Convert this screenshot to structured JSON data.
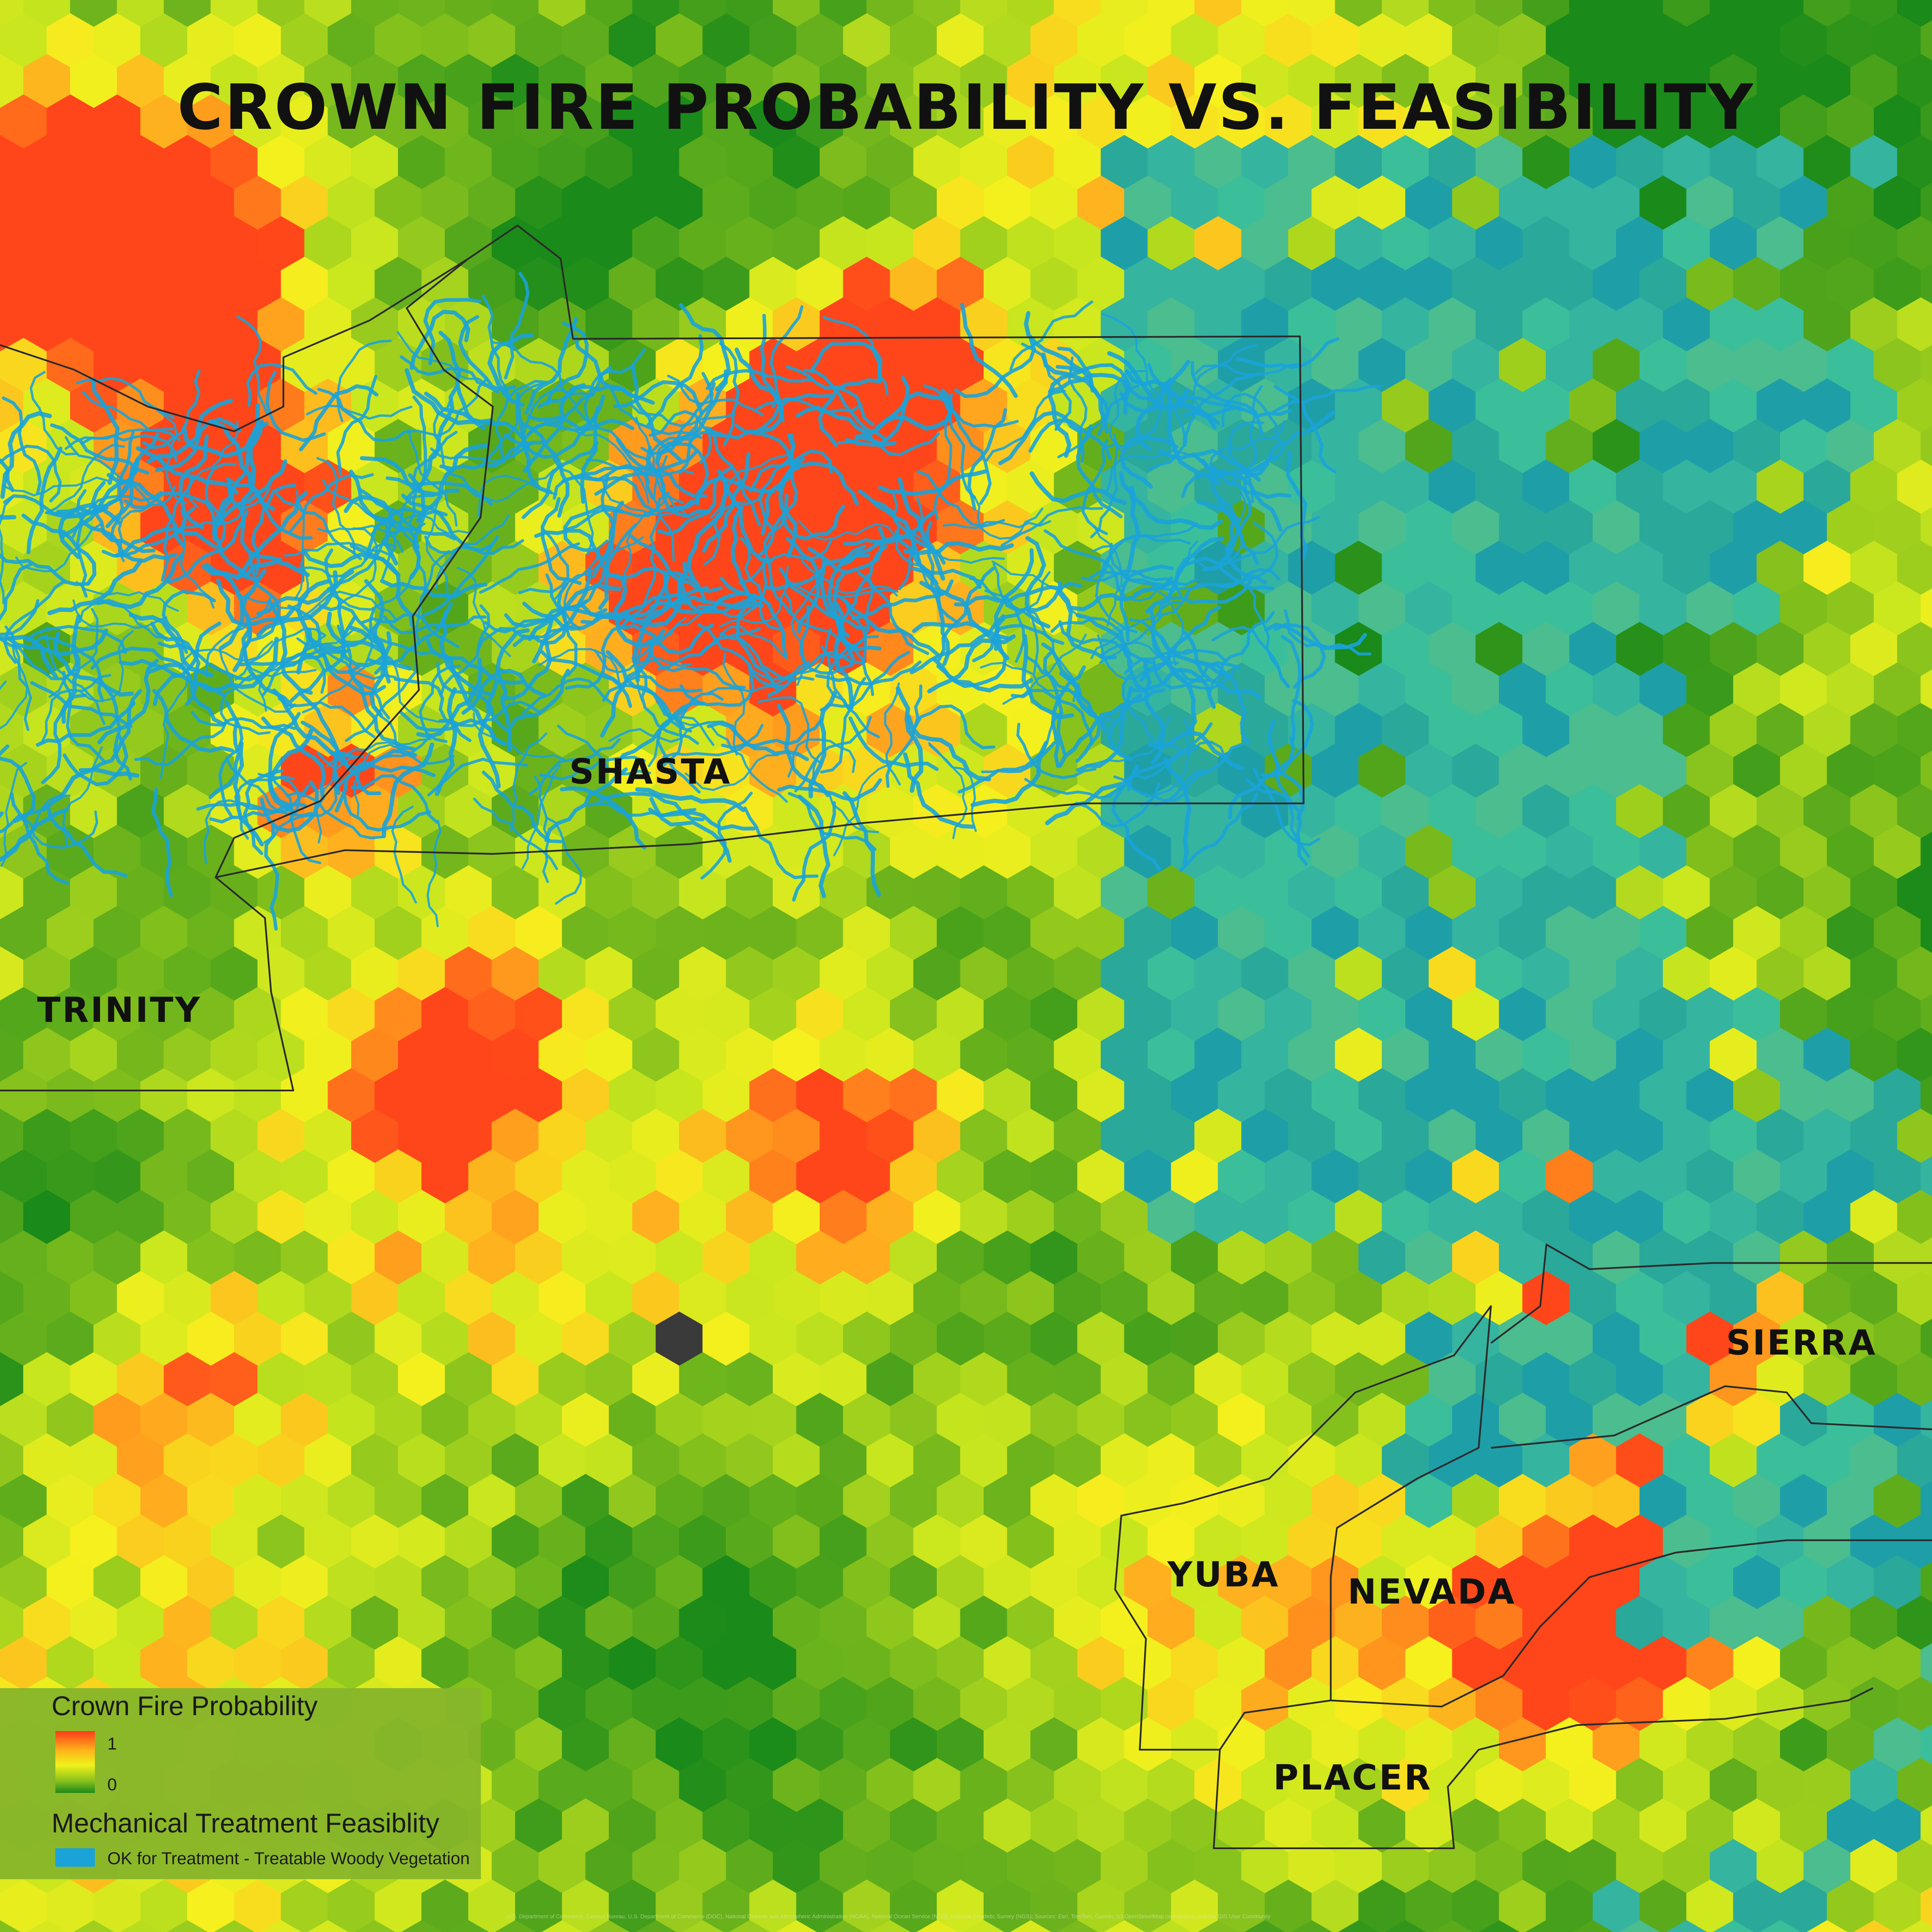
{
  "title": "CROWN FIRE PROBABILITY VS. FEASIBILITY",
  "county_labels": [
    "SHASTA",
    "TRINITY",
    "SIERRA",
    "YUBA",
    "NEVADA",
    "PLACER"
  ],
  "legend": {
    "fire_title": "Crown Fire Probability",
    "fire_high": "1",
    "fire_low": "0",
    "treatment_title": "Mechanical Treatment Feasiblity",
    "treatment_item": "OK for Treatment - Treatable Woody Vegetation"
  },
  "attribution": "U.S. Department of Commerce, Census Bureau, U.S. Department of Commerce (DOC), National Oceanic and Atmospheric Administration (NOAA), National Ocean Service (NOS), National Geodetic Survey (NGS); Sources: Esri, TomTom, Garmin, (c) OpenStreetMap contributors, and the GIS User Community"
}
